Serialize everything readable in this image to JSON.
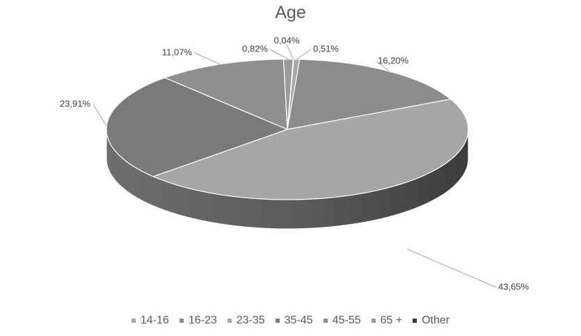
{
  "chart_data": {
    "type": "pie",
    "title": "Age",
    "three_d": true,
    "legend_position": "bottom",
    "categories": [
      "14-16",
      "16-23",
      "23-35",
      "35-45",
      "45-55",
      "65 +",
      "Other"
    ],
    "values": [
      0.51,
      16.2,
      43.65,
      23.91,
      11.07,
      0.82,
      0.04
    ],
    "labels": [
      "0,51%",
      "16,20%",
      "43,65%",
      "23,91%",
      "11,07%",
      "0,82%",
      "0,04%"
    ],
    "colors": [
      "#a8a8a8",
      "#8c8c8c",
      "#a6a6a6",
      "#7a7a7a",
      "#8f8f8f",
      "#9a9a9a",
      "#3a3a3a"
    ]
  }
}
